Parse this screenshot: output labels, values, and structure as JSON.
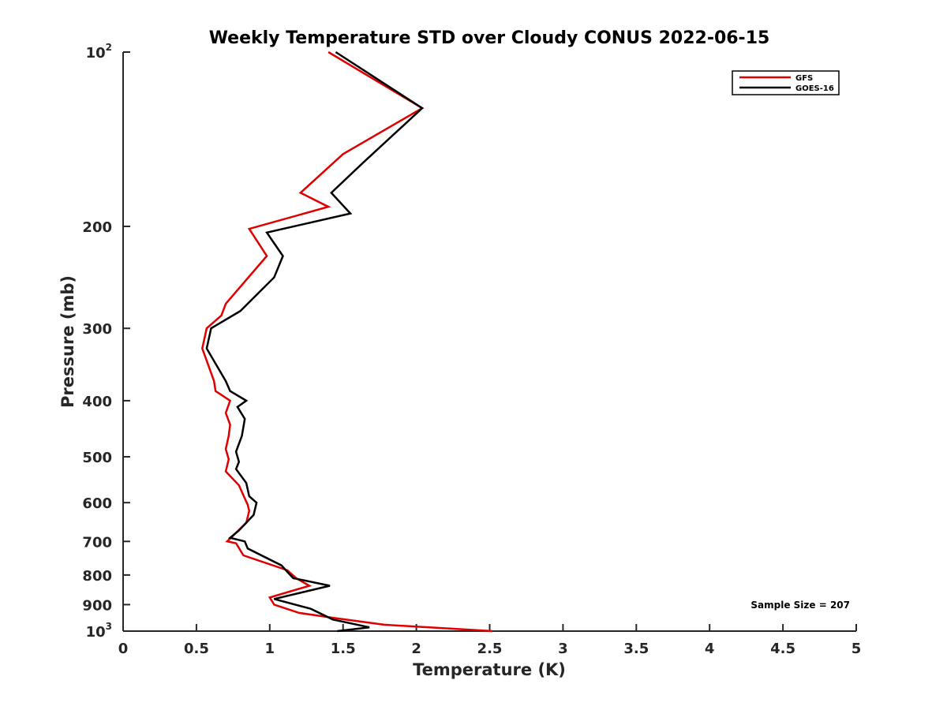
{
  "chart_data": {
    "type": "line",
    "title": "Weekly Temperature STD over Cloudy CONUS 2022-06-15",
    "xlabel": "Temperature (K)",
    "ylabel": "Pressure (mb)",
    "xlim": [
      0,
      5
    ],
    "ylim": [
      100,
      1000
    ],
    "y_scale": "log",
    "y_reversed": true,
    "grid": false,
    "legend_placement": "top-right",
    "x_ticks": [
      "0",
      "0.5",
      "1",
      "1.5",
      "2",
      "2.5",
      "3",
      "3.5",
      "4",
      "4.5",
      "5"
    ],
    "y_ticks": [
      {
        "value": 100,
        "base": "10",
        "exp": "2"
      },
      {
        "value": 200,
        "label": "200"
      },
      {
        "value": 300,
        "label": "300"
      },
      {
        "value": 400,
        "label": "400"
      },
      {
        "value": 500,
        "label": "500"
      },
      {
        "value": 600,
        "label": "600"
      },
      {
        "value": 700,
        "label": "700"
      },
      {
        "value": 800,
        "label": "800"
      },
      {
        "value": 900,
        "label": "900"
      },
      {
        "value": 1000,
        "base": "10",
        "exp": "3"
      }
    ],
    "annotation": "Sample Size = 207",
    "series": [
      {
        "name": "GFS",
        "color": "#e00000",
        "points": [
          [
            1.4,
            100
          ],
          [
            2.04,
            125
          ],
          [
            1.5,
            150
          ],
          [
            1.21,
            175
          ],
          [
            1.4,
            185
          ],
          [
            0.86,
            202
          ],
          [
            0.98,
            225
          ],
          [
            0.7,
            272
          ],
          [
            0.67,
            285
          ],
          [
            0.57,
            300
          ],
          [
            0.54,
            325
          ],
          [
            0.62,
            370
          ],
          [
            0.63,
            385
          ],
          [
            0.73,
            400
          ],
          [
            0.7,
            420
          ],
          [
            0.73,
            440
          ],
          [
            0.72,
            460
          ],
          [
            0.7,
            485
          ],
          [
            0.72,
            505
          ],
          [
            0.7,
            530
          ],
          [
            0.79,
            560
          ],
          [
            0.83,
            590
          ],
          [
            0.85,
            605
          ],
          [
            0.86,
            620
          ],
          [
            0.84,
            650
          ],
          [
            0.71,
            700
          ],
          [
            0.77,
            705
          ],
          [
            0.82,
            740
          ],
          [
            1.12,
            785
          ],
          [
            1.18,
            810
          ],
          [
            1.27,
            835
          ],
          [
            1.0,
            875
          ],
          [
            1.03,
            900
          ],
          [
            1.2,
            930
          ],
          [
            1.45,
            950
          ],
          [
            1.78,
            975
          ],
          [
            2.32,
            993
          ],
          [
            2.52,
            1000
          ]
        ]
      },
      {
        "name": "GOES-16",
        "color": "#000000",
        "points": [
          [
            1.45,
            100
          ],
          [
            2.04,
            125
          ],
          [
            1.64,
            155
          ],
          [
            1.42,
            175
          ],
          [
            1.55,
            190
          ],
          [
            0.98,
            205
          ],
          [
            1.09,
            225
          ],
          [
            1.03,
            245
          ],
          [
            0.8,
            280
          ],
          [
            0.6,
            300
          ],
          [
            0.57,
            325
          ],
          [
            0.7,
            370
          ],
          [
            0.73,
            385
          ],
          [
            0.84,
            400
          ],
          [
            0.78,
            410
          ],
          [
            0.83,
            430
          ],
          [
            0.81,
            460
          ],
          [
            0.77,
            490
          ],
          [
            0.79,
            510
          ],
          [
            0.77,
            525
          ],
          [
            0.84,
            555
          ],
          [
            0.86,
            585
          ],
          [
            0.91,
            600
          ],
          [
            0.89,
            630
          ],
          [
            0.79,
            670
          ],
          [
            0.73,
            690
          ],
          [
            0.83,
            700
          ],
          [
            0.85,
            720
          ],
          [
            1.08,
            770
          ],
          [
            1.12,
            790
          ],
          [
            1.16,
            810
          ],
          [
            1.41,
            835
          ],
          [
            1.03,
            880
          ],
          [
            1.28,
            915
          ],
          [
            1.43,
            955
          ],
          [
            1.68,
            985
          ],
          [
            1.46,
            1000
          ]
        ]
      }
    ]
  }
}
